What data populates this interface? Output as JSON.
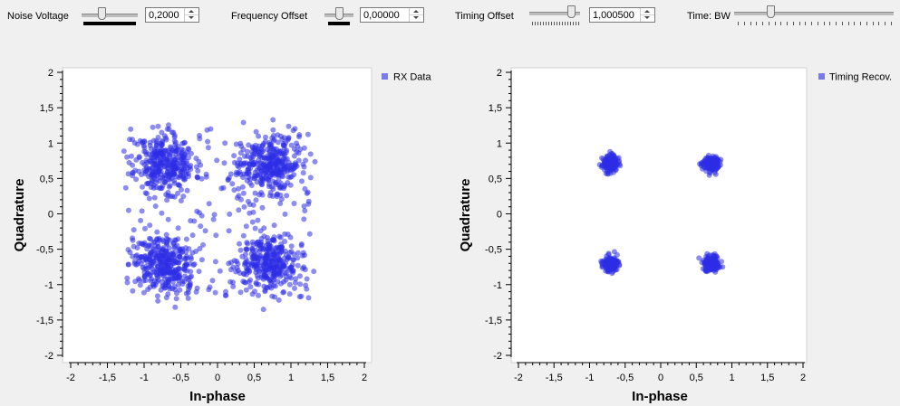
{
  "controls": {
    "noise_voltage": {
      "label": "Noise Voltage",
      "value": "0,2000"
    },
    "frequency_offset": {
      "label": "Frequency Offset",
      "value": "0,00000"
    },
    "timing_offset": {
      "label": "Timing Offset",
      "value": "1,000500"
    },
    "time_bw": {
      "label": "Time: BW"
    }
  },
  "colors": {
    "points": "#2e2ee6",
    "legend": "#7a7af0",
    "plot_bg": "#ffffff",
    "window_bg": "#f0f0f0"
  },
  "chart_data": [
    {
      "type": "scatter",
      "title": "",
      "xlabel": "In-phase",
      "ylabel": "Quadrature",
      "legend": [
        "RX Data"
      ],
      "legend_position": "top-right",
      "xlim": [
        -2,
        2
      ],
      "ylim": [
        -2,
        2
      ],
      "xticks": [
        "-2",
        "-1,5",
        "-1",
        "-0,5",
        "0",
        "0,5",
        "1",
        "1,5",
        "2"
      ],
      "yticks": [
        "2",
        "1,5",
        "1",
        "0,5",
        "0",
        "-0,5",
        "-1",
        "-1,5",
        "-2"
      ],
      "grid": false,
      "series": [
        {
          "name": "RX Data",
          "clusters": [
            [
              -0.71,
              0.71
            ],
            [
              0.71,
              0.71
            ],
            [
              -0.71,
              -0.71
            ],
            [
              0.71,
              -0.71
            ]
          ],
          "spread": 0.2,
          "points_per_cluster": 320,
          "uniform_fill_points": 220,
          "uniform_range": 1.25,
          "seed": 11
        }
      ]
    },
    {
      "type": "scatter",
      "title": "",
      "xlabel": "In-phase",
      "ylabel": "Quadrature",
      "legend": [
        "Timing Recov."
      ],
      "legend_position": "top-right",
      "xlim": [
        -2,
        2
      ],
      "ylim": [
        -2,
        2
      ],
      "xticks": [
        "-2",
        "-1,5",
        "-1",
        "-0,5",
        "0",
        "0,5",
        "1",
        "1,5",
        "2"
      ],
      "yticks": [
        "2",
        "1,5",
        "1",
        "0,5",
        "0",
        "-0,5",
        "-1",
        "-1,5",
        "-2"
      ],
      "grid": false,
      "series": [
        {
          "name": "Timing Recov.",
          "clusters": [
            [
              -0.71,
              0.71
            ],
            [
              0.71,
              0.71
            ],
            [
              -0.71,
              -0.71
            ],
            [
              0.71,
              -0.71
            ]
          ],
          "spread": 0.055,
          "points_per_cluster": 170,
          "uniform_fill_points": 0,
          "uniform_range": 0,
          "seed": 23
        }
      ]
    }
  ]
}
